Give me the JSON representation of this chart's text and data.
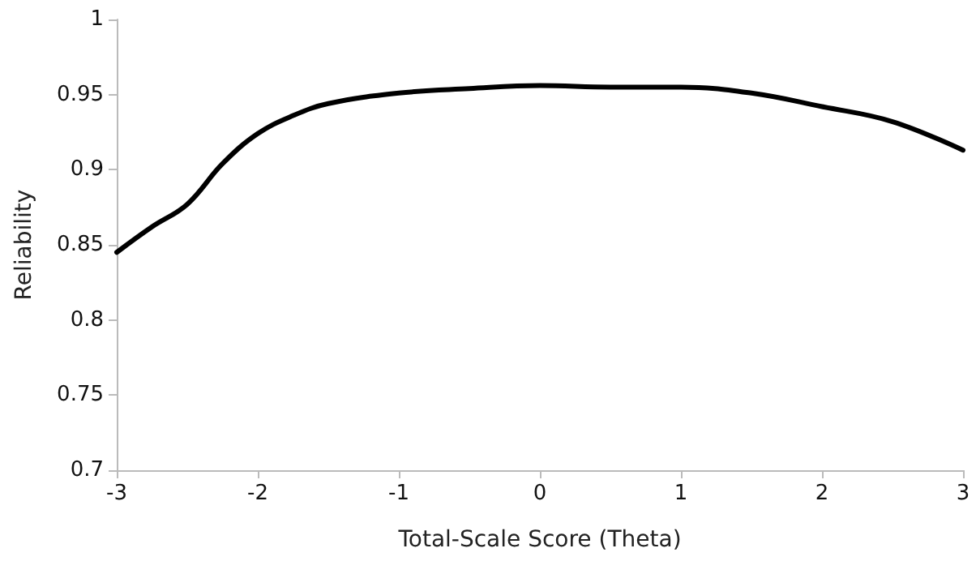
{
  "chart_data": {
    "type": "line",
    "xlabel": "Total-Scale Score (Theta)",
    "ylabel": "Reliability",
    "x": [
      -3,
      -2.75,
      -2.5,
      -2.25,
      -2,
      -1.75,
      -1.5,
      -1,
      -0.5,
      0,
      0.5,
      1,
      1.5,
      2,
      2.5,
      3
    ],
    "series": [
      {
        "color": "#000000",
        "values": [
          0.845,
          0.862,
          0.877,
          0.904,
          0.924,
          0.936,
          0.944,
          0.951,
          0.954,
          0.956,
          0.955,
          0.955,
          0.951,
          0.942,
          0.932,
          0.913
        ]
      }
    ],
    "xlim": [
      -3,
      3
    ],
    "xticks": [
      -3,
      -2,
      -1,
      0,
      1,
      2,
      3
    ],
    "ylim": [
      0.7,
      1
    ],
    "yticks": [
      0.7,
      0.75,
      0.8,
      0.85,
      0.9,
      0.95,
      1
    ],
    "grid": false,
    "marker": "none",
    "line_style": "solid"
  }
}
